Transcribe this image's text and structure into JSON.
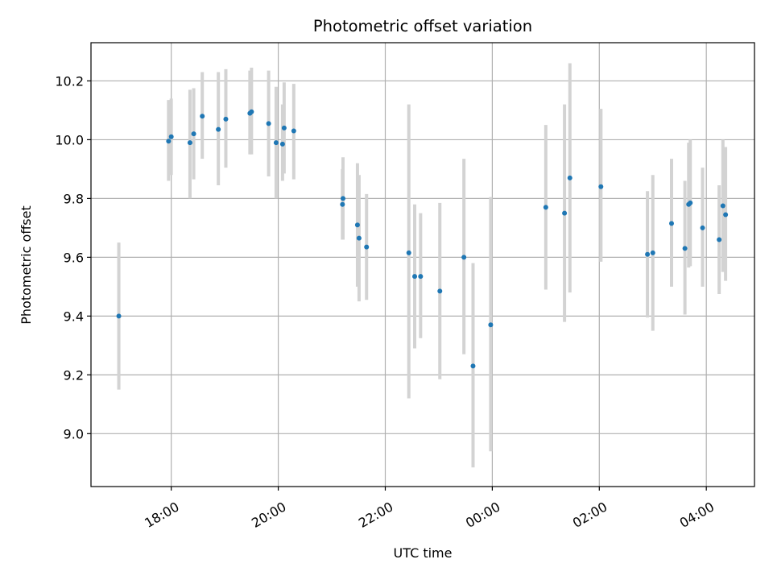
{
  "chart_data": {
    "type": "scatter",
    "title": "Photometric offset variation",
    "xlabel": "UTC time",
    "ylabel": "Photometric offset",
    "x_unit": "hours since 00:00 (UTC), negative = previous day",
    "xlim": [
      -7.5,
      4.9
    ],
    "ylim": [
      8.82,
      10.33
    ],
    "grid": true,
    "x_ticks": [
      {
        "value": -6,
        "label": "18:00"
      },
      {
        "value": -4,
        "label": "20:00"
      },
      {
        "value": -2,
        "label": "22:00"
      },
      {
        "value": 0,
        "label": "00:00"
      },
      {
        "value": 2,
        "label": "02:00"
      },
      {
        "value": 4,
        "label": "04:00"
      }
    ],
    "y_ticks": [
      {
        "value": 9.0,
        "label": "9.0"
      },
      {
        "value": 9.2,
        "label": "9.2"
      },
      {
        "value": 9.4,
        "label": "9.4"
      },
      {
        "value": 9.6,
        "label": "9.6"
      },
      {
        "value": 9.8,
        "label": "9.8"
      },
      {
        "value": 10.0,
        "label": "10.0"
      },
      {
        "value": 10.2,
        "label": "10.2"
      }
    ],
    "colors": {
      "point": "#1f77b4",
      "errorbar": "#d3d3d3",
      "grid": "#b0b0b0",
      "axes": "#000000"
    },
    "series": [
      {
        "name": "offset",
        "points": [
          {
            "x": -6.98,
            "y": 9.4,
            "err_low": 9.15,
            "err_high": 9.65
          },
          {
            "x": -6.05,
            "y": 9.995,
            "err_low": 9.86,
            "err_high": 10.135
          },
          {
            "x": -6.0,
            "y": 10.01,
            "err_low": 9.88,
            "err_high": 10.14
          },
          {
            "x": -5.65,
            "y": 9.99,
            "err_low": 9.8,
            "err_high": 10.17
          },
          {
            "x": -5.58,
            "y": 10.02,
            "err_low": 9.865,
            "err_high": 10.175
          },
          {
            "x": -5.42,
            "y": 10.08,
            "err_low": 9.935,
            "err_high": 10.23
          },
          {
            "x": -5.12,
            "y": 10.035,
            "err_low": 9.845,
            "err_high": 10.23
          },
          {
            "x": -4.98,
            "y": 10.07,
            "err_low": 9.905,
            "err_high": 10.24
          },
          {
            "x": -4.53,
            "y": 10.09,
            "err_low": 9.95,
            "err_high": 10.235
          },
          {
            "x": -4.5,
            "y": 10.095,
            "err_low": 9.95,
            "err_high": 10.245
          },
          {
            "x": -4.18,
            "y": 10.055,
            "err_low": 9.875,
            "err_high": 10.235
          },
          {
            "x": -4.04,
            "y": 9.99,
            "err_low": 9.8,
            "err_high": 10.18
          },
          {
            "x": -3.92,
            "y": 9.985,
            "err_low": 9.86,
            "err_high": 10.12
          },
          {
            "x": -3.89,
            "y": 10.04,
            "err_low": 9.885,
            "err_high": 10.195
          },
          {
            "x": -3.71,
            "y": 10.03,
            "err_low": 9.865,
            "err_high": 10.19
          },
          {
            "x": -2.8,
            "y": 9.78,
            "err_low": 9.66,
            "err_high": 9.9
          },
          {
            "x": -2.79,
            "y": 9.8,
            "err_low": 9.66,
            "err_high": 9.94
          },
          {
            "x": -2.52,
            "y": 9.71,
            "err_low": 9.5,
            "err_high": 9.92
          },
          {
            "x": -2.49,
            "y": 9.665,
            "err_low": 9.45,
            "err_high": 9.88
          },
          {
            "x": -2.35,
            "y": 9.635,
            "err_low": 9.455,
            "err_high": 9.815
          },
          {
            "x": -1.56,
            "y": 9.615,
            "err_low": 9.12,
            "err_high": 10.12
          },
          {
            "x": -1.45,
            "y": 9.535,
            "err_low": 9.29,
            "err_high": 9.78
          },
          {
            "x": -1.34,
            "y": 9.535,
            "err_low": 9.325,
            "err_high": 9.75
          },
          {
            "x": -0.98,
            "y": 9.485,
            "err_low": 9.185,
            "err_high": 9.785
          },
          {
            "x": -0.53,
            "y": 9.6,
            "err_low": 9.27,
            "err_high": 9.935
          },
          {
            "x": -0.36,
            "y": 9.23,
            "err_low": 8.885,
            "err_high": 9.58
          },
          {
            "x": -0.03,
            "y": 9.37,
            "err_low": 8.94,
            "err_high": 9.805
          },
          {
            "x": 1.0,
            "y": 9.77,
            "err_low": 9.49,
            "err_high": 10.05
          },
          {
            "x": 1.35,
            "y": 9.75,
            "err_low": 9.38,
            "err_high": 10.12
          },
          {
            "x": 1.45,
            "y": 9.87,
            "err_low": 9.48,
            "err_high": 10.26
          },
          {
            "x": 2.03,
            "y": 9.84,
            "err_low": 9.585,
            "err_high": 10.105
          },
          {
            "x": 2.9,
            "y": 9.61,
            "err_low": 9.395,
            "err_high": 9.825
          },
          {
            "x": 3.0,
            "y": 9.615,
            "err_low": 9.35,
            "err_high": 9.88
          },
          {
            "x": 3.35,
            "y": 9.715,
            "err_low": 9.5,
            "err_high": 9.935
          },
          {
            "x": 3.6,
            "y": 9.63,
            "err_low": 9.405,
            "err_high": 9.86
          },
          {
            "x": 3.67,
            "y": 9.78,
            "err_low": 9.565,
            "err_high": 9.99
          },
          {
            "x": 3.7,
            "y": 9.785,
            "err_low": 9.57,
            "err_high": 10.0
          },
          {
            "x": 3.93,
            "y": 9.7,
            "err_low": 9.5,
            "err_high": 9.905
          },
          {
            "x": 4.24,
            "y": 9.66,
            "err_low": 9.475,
            "err_high": 9.845
          },
          {
            "x": 4.31,
            "y": 9.775,
            "err_low": 9.55,
            "err_high": 10.0
          },
          {
            "x": 4.36,
            "y": 9.745,
            "err_low": 9.52,
            "err_high": 9.975
          }
        ]
      }
    ]
  }
}
